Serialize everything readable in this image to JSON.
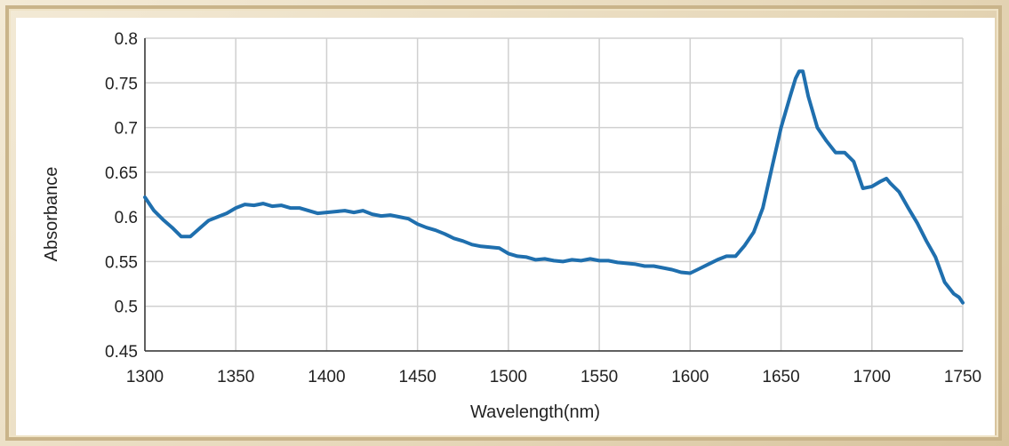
{
  "colors": {
    "series": "#1f6fae",
    "grid": "#d0d0d0",
    "axis": "#333333"
  },
  "chart_data": {
    "type": "line",
    "title": "",
    "xlabel": "Wavelength(nm)",
    "ylabel": "Absorbance",
    "xlim": [
      1300,
      1750
    ],
    "ylim": [
      0.45,
      0.8
    ],
    "xticks": [
      1300,
      1350,
      1400,
      1450,
      1500,
      1550,
      1600,
      1650,
      1700,
      1750
    ],
    "yticks": [
      "0.45",
      "0.5",
      "0.55",
      "0.6",
      "0.65",
      "0.7",
      "0.75",
      "0.8"
    ],
    "grid": true,
    "legend": "none",
    "series": [
      {
        "x": [
          1300,
          1305,
          1310,
          1315,
          1320,
          1325,
          1330,
          1335,
          1340,
          1345,
          1350,
          1355,
          1360,
          1365,
          1370,
          1375,
          1380,
          1385,
          1390,
          1395,
          1400,
          1405,
          1410,
          1415,
          1420,
          1425,
          1430,
          1435,
          1440,
          1445,
          1450,
          1455,
          1460,
          1465,
          1470,
          1475,
          1480,
          1485,
          1490,
          1495,
          1500,
          1505,
          1510,
          1515,
          1520,
          1525,
          1530,
          1535,
          1540,
          1545,
          1550,
          1555,
          1560,
          1565,
          1570,
          1575,
          1580,
          1585,
          1590,
          1595,
          1600,
          1605,
          1610,
          1615,
          1620,
          1625,
          1630,
          1635,
          1640,
          1645,
          1650,
          1655,
          1658,
          1660,
          1662,
          1665,
          1670,
          1675,
          1680,
          1685,
          1690,
          1695,
          1700,
          1705,
          1708,
          1710,
          1715,
          1720,
          1725,
          1730,
          1735,
          1740,
          1745,
          1748,
          1750
        ],
        "y": [
          0.622,
          0.607,
          0.597,
          0.588,
          0.578,
          0.578,
          0.587,
          0.596,
          0.6,
          0.604,
          0.61,
          0.614,
          0.613,
          0.615,
          0.612,
          0.613,
          0.61,
          0.61,
          0.607,
          0.604,
          0.605,
          0.606,
          0.607,
          0.605,
          0.607,
          0.603,
          0.601,
          0.602,
          0.6,
          0.598,
          0.592,
          0.588,
          0.585,
          0.581,
          0.576,
          0.573,
          0.569,
          0.567,
          0.566,
          0.565,
          0.559,
          0.556,
          0.555,
          0.552,
          0.553,
          0.551,
          0.55,
          0.552,
          0.551,
          0.553,
          0.551,
          0.551,
          0.549,
          0.548,
          0.547,
          0.545,
          0.545,
          0.543,
          0.541,
          0.538,
          0.537,
          0.542,
          0.547,
          0.552,
          0.556,
          0.556,
          0.568,
          0.583,
          0.61,
          0.655,
          0.7,
          0.735,
          0.755,
          0.763,
          0.763,
          0.735,
          0.7,
          0.685,
          0.672,
          0.672,
          0.662,
          0.632,
          0.634,
          0.64,
          0.643,
          0.638,
          0.628,
          0.61,
          0.593,
          0.573,
          0.555,
          0.527,
          0.514,
          0.51,
          0.504
        ]
      }
    ]
  }
}
